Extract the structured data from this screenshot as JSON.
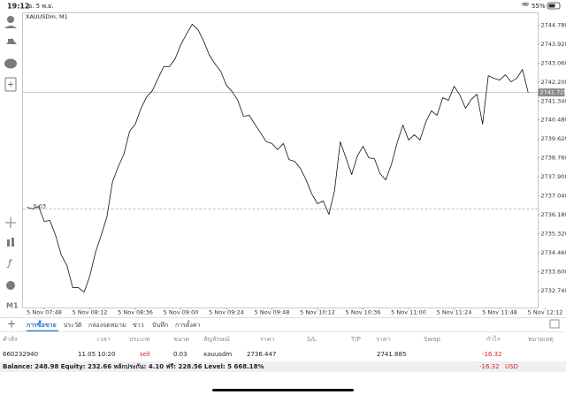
{
  "status_bar": {
    "time": "19:12",
    "date": "อ. 5 พ.ย.",
    "battery": "55%"
  },
  "toolbar": {
    "timeframe": "M1"
  },
  "chart_data": {
    "type": "line",
    "symbol": "XAUUSDm, M1",
    "color": "#111111",
    "categories": [
      null,
      null,
      null,
      "5 Nov 07:48",
      null,
      null,
      null,
      null,
      null,
      null,
      null,
      "5 Nov 08:12",
      null,
      null,
      null,
      null,
      null,
      null,
      null,
      "5 Nov 08:36",
      null,
      null,
      null,
      null,
      null,
      null,
      null,
      "5 Nov 09:00",
      null,
      null,
      null,
      null,
      null,
      null,
      null,
      "5 Nov 09:24",
      null,
      null,
      null,
      null,
      null,
      null,
      null,
      "5 Nov 09:48",
      null,
      null,
      null,
      null,
      null,
      null,
      null,
      "5 Nov 10:12",
      null,
      null,
      null,
      null,
      null,
      null,
      null,
      "5 Nov 10:36",
      null,
      null,
      null,
      null,
      null,
      null,
      null,
      "5 Nov 11:00",
      null,
      null,
      null,
      null,
      null,
      null,
      null,
      "5 Nov 11:24",
      null,
      null,
      null,
      null,
      null,
      null,
      null,
      "5 Nov 11:48",
      null,
      null,
      null,
      null,
      null,
      null,
      null,
      "5 Nov 12:12"
    ],
    "values": [
      2736.52,
      2736.44,
      2736.56,
      2735.88,
      2735.92,
      2735.24,
      2734.35,
      2733.87,
      2732.87,
      2732.87,
      2732.67,
      2733.39,
      2734.47,
      2735.24,
      2736.08,
      2737.68,
      2738.36,
      2738.93,
      2739.97,
      2740.29,
      2741.01,
      2741.53,
      2741.81,
      2742.37,
      2742.9,
      2742.9,
      2743.26,
      2743.9,
      2744.38,
      2744.82,
      2744.58,
      2744.06,
      2743.42,
      2743.02,
      2742.69,
      2742.05,
      2741.77,
      2741.37,
      2740.65,
      2740.69,
      2740.29,
      2739.89,
      2739.49,
      2739.41,
      2739.13,
      2739.41,
      2738.68,
      2738.6,
      2738.28,
      2737.76,
      2737.12,
      2736.68,
      2736.8,
      2736.2,
      2737.28,
      2739.49,
      2738.76,
      2738.0,
      2738.85,
      2739.29,
      2738.76,
      2738.72,
      2738.04,
      2737.76,
      2738.48,
      2739.45,
      2740.25,
      2739.57,
      2739.81,
      2739.57,
      2740.37,
      2740.89,
      2740.69,
      2741.49,
      2741.37,
      2742.01,
      2741.61,
      2741.01,
      2741.41,
      2741.65,
      2740.29,
      2742.49,
      2742.37,
      2742.29,
      2742.53,
      2742.21,
      2742.37,
      2742.77,
      2741.73,
      null,
      null,
      null
    ],
    "ylim": [
      2731.95,
      2745.34
    ],
    "yticks": [
      {
        "value": 2744.78,
        "label": "2744.780"
      },
      {
        "value": 2743.92,
        "label": "2743.920"
      },
      {
        "value": 2743.06,
        "label": "2743.060"
      },
      {
        "value": 2742.2,
        "label": "2742.200"
      },
      {
        "value": 2741.34,
        "label": "2741.340"
      },
      {
        "value": 2740.48,
        "label": "2740.480"
      },
      {
        "value": 2739.62,
        "label": "2739.620"
      },
      {
        "value": 2738.76,
        "label": "2738.760"
      },
      {
        "value": 2737.9,
        "label": "2737.900"
      },
      {
        "value": 2737.04,
        "label": "2737.040"
      },
      {
        "value": 2736.18,
        "label": "2736.180"
      },
      {
        "value": 2735.32,
        "label": "2735.320"
      },
      {
        "value": 2734.46,
        "label": "2734.460"
      },
      {
        "value": 2733.6,
        "label": "2733.600"
      },
      {
        "value": 2732.74,
        "label": "2732.740"
      }
    ],
    "current_price": 2741.725,
    "position": {
      "price": 2736.447,
      "volume": 0.03
    }
  },
  "tabs": [
    "การซื้อขาย",
    "ประวัติ",
    "กล่องจดหมาย",
    "ข่าว",
    "บันทึก",
    "การตั้งค่า"
  ],
  "table": {
    "columns": [
      "คำสั่ง",
      "เวลา",
      "ประเภท",
      "ขนาด",
      "สัญลักษณ์",
      "ราคา",
      "S/L",
      "T/P",
      "ราคา",
      "Swap",
      "กำไร",
      "หมายเหตุ"
    ],
    "row": {
      "order": "660232940",
      "time": "11.05 10:20",
      "type": "sell",
      "volume": "0.03",
      "symbol": "xauusdm",
      "open_price": "2736.447",
      "current_price": "2741.885",
      "profit": "-16.32"
    }
  },
  "summary": {
    "text": "Balance: 248.98 Equity: 232.66 หลักประกัน: 4.10 ฟรี: 228.56 Level: 5 668.18%",
    "profit": "-16.32",
    "currency": "USD"
  }
}
